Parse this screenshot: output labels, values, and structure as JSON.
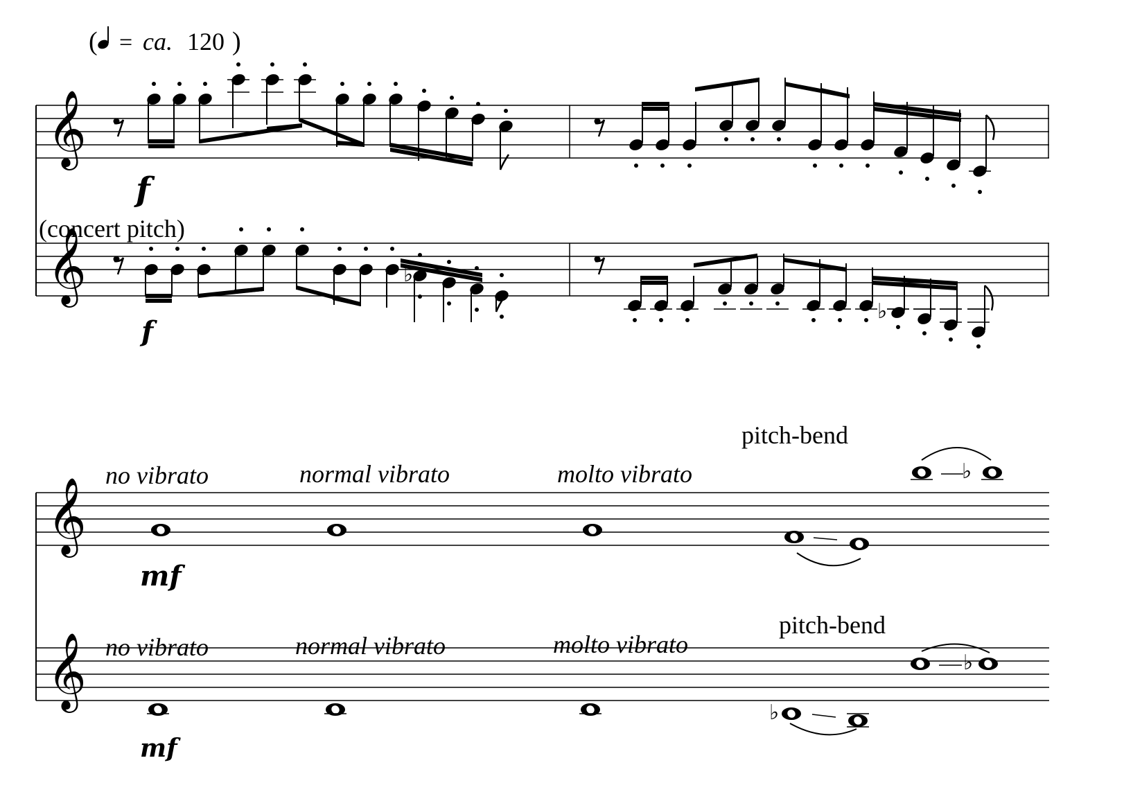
{
  "tempo": {
    "note_icon": "quarter-note-icon",
    "equals": "=",
    "ca": "ca.",
    "bpm": "120",
    "open": "(",
    "close": ")"
  },
  "system1": {
    "concert_pitch_label": "(concert pitch)",
    "dynamic_top": "f",
    "dynamic_bottom": "f"
  },
  "system2": {
    "top": {
      "expressions": [
        "no vibrato",
        "normal vibrato",
        "molto vibrato"
      ],
      "pitch_bend": "pitch-bend",
      "dynamic": "mf"
    },
    "bottom": {
      "expressions": [
        "no vibrato",
        "normal vibrato",
        "molto vibrato"
      ],
      "pitch_bend": "pitch-bend",
      "dynamic": "mf"
    }
  },
  "icons": {
    "clef": "treble-clef-icon",
    "rest": "eighth-rest-icon",
    "flat": "flat-sign-icon"
  },
  "colors": {
    "ink": "#000000",
    "paper": "#ffffff"
  }
}
